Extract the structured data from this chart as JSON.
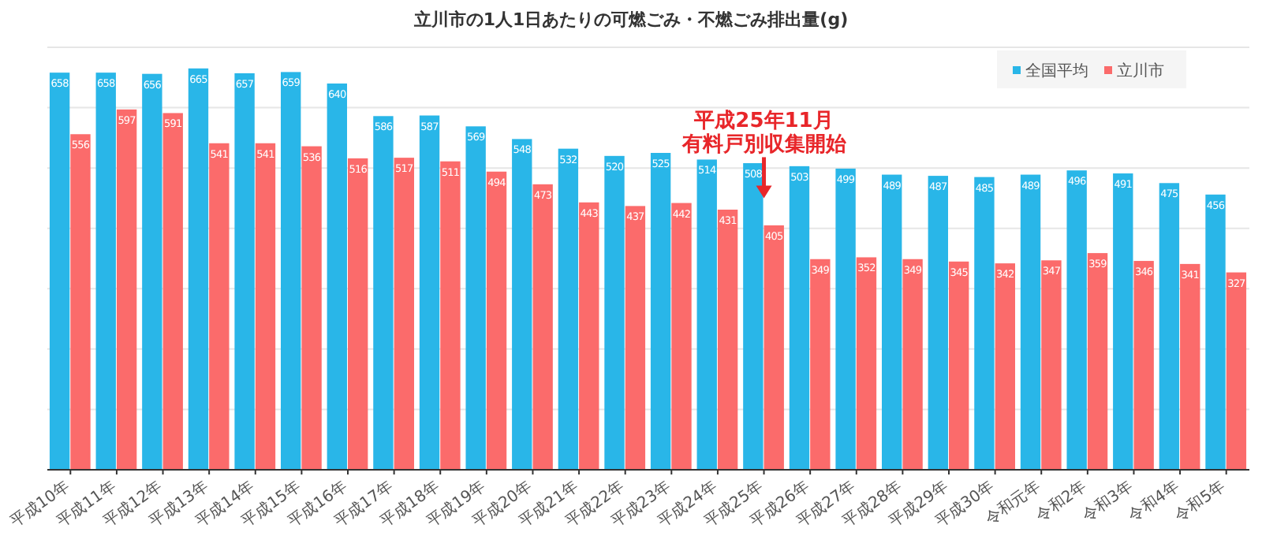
{
  "chart_data": {
    "type": "bar",
    "title": "立川市の1人1日あたりの可燃ごみ・不燃ごみ排出量(g)",
    "categories": [
      "平成10年",
      "平成11年",
      "平成12年",
      "平成13年",
      "平成14年",
      "平成15年",
      "平成16年",
      "平成17年",
      "平成18年",
      "平成19年",
      "平成20年",
      "平成21年",
      "平成22年",
      "平成23年",
      "平成24年",
      "平成25年",
      "平成26年",
      "平成27年",
      "平成28年",
      "平成29年",
      "平成30年",
      "令和元年",
      "令和2年",
      "令和3年",
      "令和4年",
      "令和5年"
    ],
    "series": [
      {
        "name": "全国平均",
        "color": "#29b6e8",
        "values": [
          658,
          658,
          656,
          665,
          657,
          659,
          640,
          586,
          587,
          569,
          548,
          532,
          520,
          525,
          514,
          508,
          503,
          499,
          489,
          487,
          485,
          489,
          496,
          491,
          475,
          456
        ]
      },
      {
        "name": "立川市",
        "color": "#fb6b6b",
        "values": [
          556,
          597,
          591,
          541,
          541,
          536,
          516,
          517,
          511,
          494,
          473,
          443,
          437,
          442,
          431,
          405,
          349,
          352,
          349,
          345,
          342,
          347,
          359,
          346,
          341,
          327
        ]
      }
    ],
    "ylim": [
      0,
      700
    ],
    "yticks": [
      {
        "value": 0,
        "label": null
      },
      {
        "value": 100,
        "label": null
      },
      {
        "value": 200,
        "label": null
      },
      {
        "value": 300,
        "label": null
      },
      {
        "value": 400,
        "label": null
      },
      {
        "value": 500,
        "label": null
      },
      {
        "value": 600,
        "label": null
      },
      {
        "value": 700,
        "label": null
      }
    ],
    "grid": "y",
    "legend": "top right",
    "data_labels": true,
    "tick_labels": "x",
    "annotations": [
      {
        "text": "平成25年11月有料戸別収集開始",
        "x": "平成25年",
        "y": 450
      }
    ]
  }
}
